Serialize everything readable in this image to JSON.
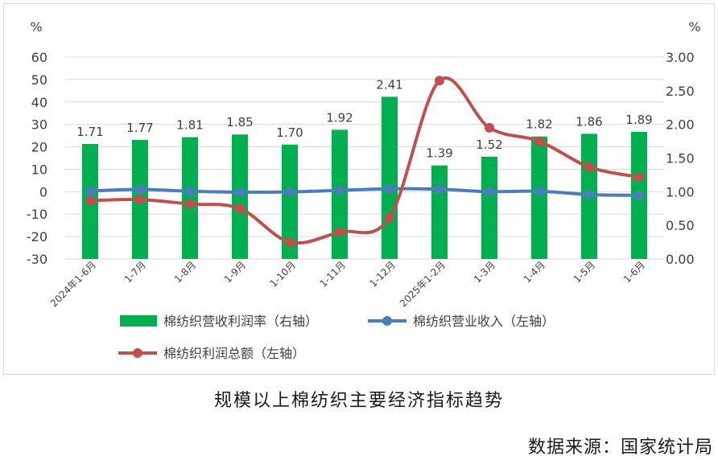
{
  "chart_data": {
    "type": "bar",
    "categories": [
      "2024年1-6月",
      "1-7月",
      "1-8月",
      "1-9月",
      "1-10月",
      "1-11月",
      "1-12月",
      "2025年1-2月",
      "1-3月",
      "1-4月",
      "1-5月",
      "1-6月"
    ],
    "left_axis": {
      "unit": "%",
      "ticks": [
        "60",
        "50",
        "40",
        "30",
        "20",
        "10",
        "0",
        "-10",
        "-20",
        "-30"
      ],
      "ylim": [
        -30,
        60
      ]
    },
    "right_axis": {
      "unit": "%",
      "ticks": [
        "3.00",
        "2.50",
        "2.00",
        "1.50",
        "1.00",
        "0.50",
        "0.00"
      ],
      "ylim": [
        0,
        3
      ]
    },
    "series": [
      {
        "name": "棉纺织营收利润率（右轴）",
        "type": "bar",
        "axis": "right",
        "color": "#00b050",
        "values": [
          1.71,
          1.77,
          1.81,
          1.85,
          1.7,
          1.92,
          2.41,
          1.39,
          1.52,
          1.82,
          1.86,
          1.89
        ],
        "labels": [
          "1.71",
          "1.77",
          "1.81",
          "1.85",
          "1.70",
          "1.92",
          "2.41",
          "1.39",
          "1.52",
          "1.82",
          "1.86",
          "1.89"
        ]
      },
      {
        "name": "棉纺织营业收入（左轴）",
        "type": "line",
        "axis": "left",
        "color": "#4a7ebb",
        "values": [
          0.3,
          1.0,
          0.2,
          -0.2,
          -0.1,
          0.6,
          1.3,
          1.1,
          0.0,
          0.2,
          -1.3,
          -1.6
        ]
      },
      {
        "name": "棉纺织利润总额（左轴）",
        "type": "line",
        "axis": "left",
        "color": "#c0504d",
        "values": [
          -4.0,
          -3.5,
          -5.5,
          -7.5,
          -22.5,
          -18.0,
          -11.5,
          49.5,
          28.5,
          22.5,
          11.0,
          6.5
        ]
      }
    ]
  },
  "caption": "规模以上棉纺织主要经济指标趋势",
  "source": "数据来源：国家统计局"
}
